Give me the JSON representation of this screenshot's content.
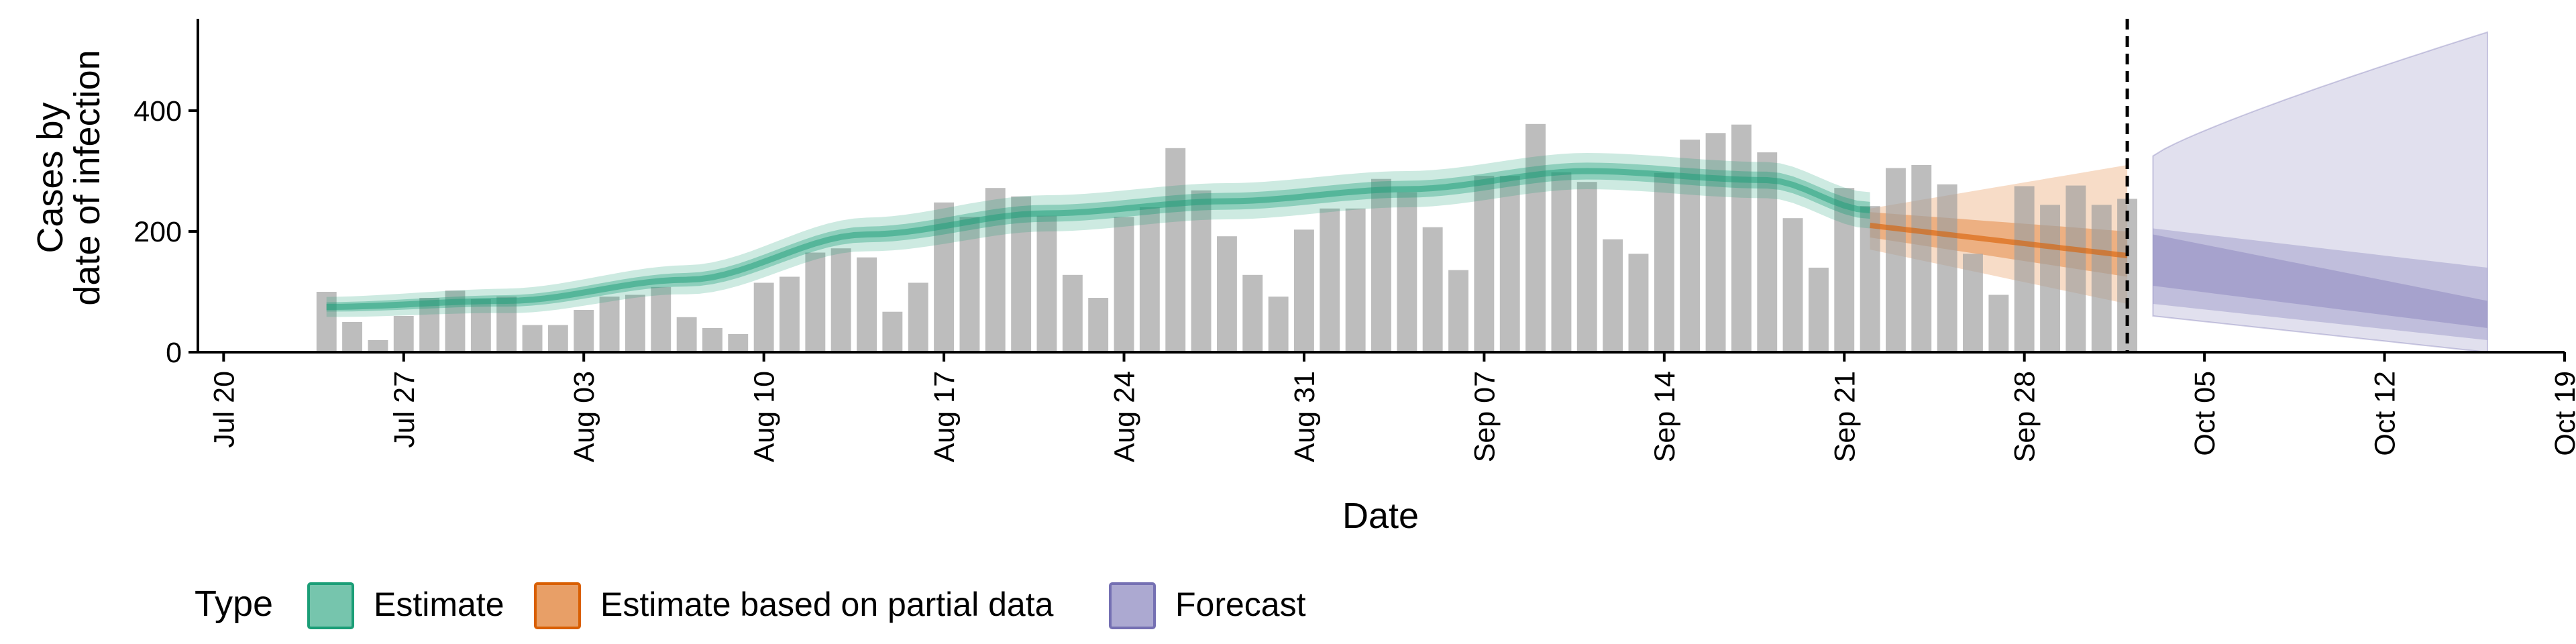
{
  "chart_data": {
    "type": "bar",
    "xlabel": "Date",
    "ylabel_lines": [
      "Cases by",
      "date of infection"
    ],
    "x_ticks": [
      "Jul 20",
      "Jul 27",
      "Aug 03",
      "Aug 10",
      "Aug 17",
      "Aug 24",
      "Aug 31",
      "Sep 07",
      "Sep 14",
      "Sep 21",
      "Sep 28",
      "Oct 05",
      "Oct 12",
      "Oct 19"
    ],
    "x_range_days": [
      "2020-07-19",
      "2020-10-19"
    ],
    "y_ticks": [
      0,
      200,
      400
    ],
    "ylim": [
      0,
      550
    ],
    "grid": false,
    "legend_position": "bottom",
    "legend_title": "Type",
    "legend": [
      {
        "label": "Estimate",
        "color": "#1b9e77"
      },
      {
        "label": "Estimate based on partial data",
        "color": "#d95f02"
      },
      {
        "label": "Forecast",
        "color": "#7570b3"
      }
    ],
    "bar_color": "#9e9e9e",
    "bars_start_date": "2020-07-24",
    "bars": [
      100,
      50,
      20,
      60,
      90,
      102,
      88,
      92,
      45,
      45,
      70,
      92,
      95,
      108,
      58,
      40,
      30,
      115,
      125,
      165,
      172,
      157,
      67,
      115,
      248,
      224,
      272,
      258,
      226,
      128,
      90,
      224,
      240,
      338,
      268,
      192,
      128,
      92,
      203,
      238,
      238,
      287,
      265,
      207,
      136,
      292,
      292,
      378,
      298,
      282,
      187,
      163,
      297,
      352,
      363,
      377,
      331,
      222,
      140,
      272,
      242,
      305,
      310,
      278,
      163,
      95,
      275,
      244,
      276,
      244,
      254
    ],
    "vline_date": "2020-10-02",
    "estimate_date_range": [
      "2020-07-24",
      "2020-09-21"
    ],
    "estimate_median_knots": [
      [
        0,
        75
      ],
      [
        7,
        85
      ],
      [
        14,
        120
      ],
      [
        21,
        195
      ],
      [
        28,
        230
      ],
      [
        35,
        250
      ],
      [
        42,
        270
      ],
      [
        49,
        300
      ],
      [
        56,
        285
      ],
      [
        60,
        235
      ]
    ],
    "estimate_inner_halfwidth": 14,
    "estimate_outer_halfwidth": 30,
    "partial_date_range": [
      "2020-09-22",
      "2020-10-02"
    ],
    "partial_median": [
      210,
      160
    ],
    "partial_inner": [
      [
        190,
        232
      ],
      [
        125,
        200
      ]
    ],
    "partial_outer": [
      [
        170,
        238
      ],
      [
        80,
        310
      ]
    ],
    "forecast_date_range": [
      "2020-10-03",
      "2020-10-16"
    ],
    "forecast_median": [
      145,
      60
    ],
    "forecast_inner": [
      [
        110,
        195
      ],
      [
        40,
        85
      ]
    ],
    "forecast_mid": [
      [
        80,
        205
      ],
      [
        20,
        140
      ]
    ],
    "forecast_outer": [
      [
        60,
        325
      ],
      [
        0,
        530
      ]
    ]
  }
}
